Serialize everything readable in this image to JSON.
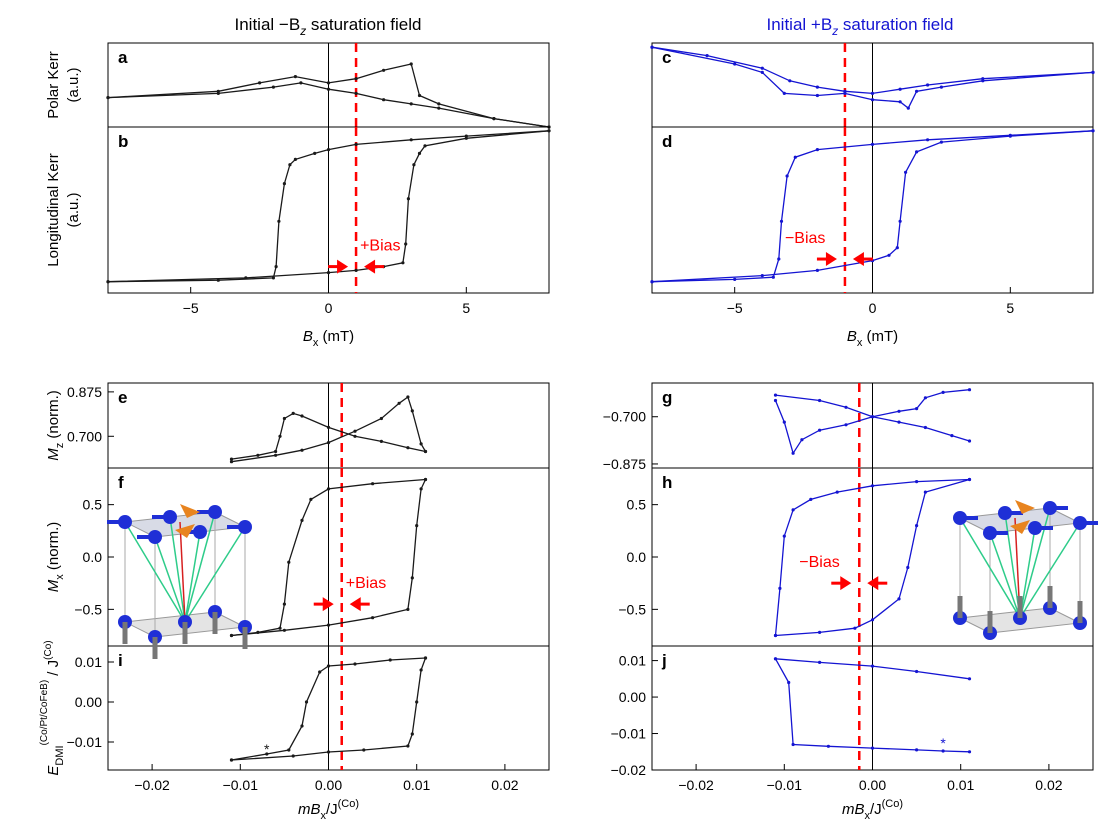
{
  "figure": {
    "col_left_title": "Initial −B",
    "col_left_sub": "z",
    "col_left_tail": " saturation field",
    "col_right_title": "Initial +B",
    "col_right_sub": "z",
    "col_right_tail": " saturation field",
    "left_color": "#1a1a1a",
    "right_color": "#1414d2",
    "bias_color": "#ff0000"
  },
  "chart_data": [
    {
      "id": "a",
      "type": "line",
      "ylabel": "Polar Kerr",
      "yunit": "(a.u.)",
      "xlim": [
        -8,
        8
      ],
      "ylim": [
        -1,
        1
      ],
      "yticks": [],
      "xticks": [],
      "bias_line_x": 1,
      "series": [
        {
          "x": [
            -8,
            -4,
            -2,
            -1,
            0,
            1,
            2,
            3,
            4,
            6,
            8
          ],
          "y": [
            -0.3,
            -0.2,
            -0.05,
            0.05,
            -0.1,
            -0.2,
            -0.35,
            -0.45,
            -0.55,
            -0.8,
            -1.0
          ]
        },
        {
          "x": [
            -8,
            -4,
            -2.5,
            -1.2,
            0,
            1,
            2,
            3,
            3.3,
            4,
            6,
            8
          ],
          "y": [
            -0.3,
            -0.15,
            0.05,
            0.2,
            0.05,
            0.15,
            0.35,
            0.5,
            -0.25,
            -0.45,
            -0.8,
            -1.0
          ]
        }
      ]
    },
    {
      "id": "b",
      "type": "line",
      "ylabel": "Longitudinal Kerr",
      "yunit": "(a.u.)",
      "xlabel": "B",
      "xlabel_sub": "x",
      "xlabel_unit": " (mT)",
      "xlim": [
        -8,
        8
      ],
      "ylim": [
        -1.15,
        1.05
      ],
      "xticks": [
        -5,
        0,
        5
      ],
      "yticks": [],
      "bias_line_x": 1,
      "bias_label": "+Bias",
      "bias_arrow_y": -0.8,
      "series": [
        {
          "x": [
            -8,
            -4,
            -2,
            -1.9,
            -1.8,
            -1.6,
            -1.4,
            -1.2,
            -0.5,
            0,
            1,
            3,
            5,
            8
          ],
          "y": [
            -1,
            -0.98,
            -0.95,
            -0.8,
            -0.2,
            0.3,
            0.55,
            0.62,
            0.7,
            0.75,
            0.82,
            0.88,
            0.93,
            1.0
          ]
        },
        {
          "x": [
            -8,
            -3,
            0,
            1,
            2,
            2.7,
            2.8,
            2.9,
            3.1,
            3.3,
            3.5,
            5,
            8
          ],
          "y": [
            -1,
            -0.95,
            -0.88,
            -0.85,
            -0.8,
            -0.75,
            -0.5,
            0.1,
            0.55,
            0.7,
            0.8,
            0.9,
            1.0
          ]
        }
      ]
    },
    {
      "id": "c",
      "type": "line",
      "xlim": [
        -8,
        8
      ],
      "ylim": [
        -1,
        1
      ],
      "yticks": [],
      "xticks": [],
      "bias_line_x": -1,
      "series": [
        {
          "x": [
            -8,
            -6,
            -4,
            -3,
            -2,
            -1,
            0,
            1,
            2,
            4,
            8
          ],
          "y": [
            0.9,
            0.7,
            0.4,
            0.1,
            -0.05,
            -0.15,
            -0.2,
            -0.1,
            0.0,
            0.15,
            0.3
          ]
        },
        {
          "x": [
            -8,
            -5,
            -4,
            -3.2,
            -2,
            -1,
            0,
            1,
            1.3,
            1.6,
            2.5,
            4,
            8
          ],
          "y": [
            0.9,
            0.5,
            0.3,
            -0.2,
            -0.25,
            -0.2,
            -0.35,
            -0.4,
            -0.55,
            -0.15,
            -0.05,
            0.1,
            0.3
          ]
        }
      ]
    },
    {
      "id": "d",
      "type": "line",
      "xlabel": "B",
      "xlabel_sub": "x",
      "xlabel_unit": " (mT)",
      "xlim": [
        -8,
        8
      ],
      "ylim": [
        -1.15,
        1.05
      ],
      "xticks": [
        -5,
        0,
        5
      ],
      "yticks": [],
      "bias_line_x": -1,
      "bias_label": "−Bias",
      "bias_arrow_y": -0.7,
      "series": [
        {
          "x": [
            -8,
            -5,
            -3.6,
            -3.4,
            -3.3,
            -3.1,
            -2.8,
            -2,
            0,
            2,
            5,
            8
          ],
          "y": [
            -1,
            -0.97,
            -0.94,
            -0.7,
            -0.2,
            0.4,
            0.65,
            0.75,
            0.82,
            0.88,
            0.94,
            1.0
          ]
        },
        {
          "x": [
            -8,
            -4,
            -2,
            0,
            0.6,
            0.9,
            1.0,
            1.2,
            1.6,
            2.5,
            5,
            8
          ],
          "y": [
            -1,
            -0.92,
            -0.85,
            -0.72,
            -0.65,
            -0.55,
            -0.2,
            0.45,
            0.72,
            0.85,
            0.93,
            1.0
          ]
        }
      ]
    },
    {
      "id": "e",
      "type": "line",
      "ylabel": "M",
      "ylabel_sub": "z",
      "yunit": " (norm.)",
      "xlim": [
        -0.025,
        0.025
      ],
      "ylim": [
        0.575,
        0.91
      ],
      "yticks": [
        0.7,
        0.875
      ],
      "ytick_labels": [
        "0.700",
        "0.875"
      ],
      "xticks": [],
      "bias_line_x": 0.0015,
      "series": [
        {
          "x": [
            -0.011,
            -0.008,
            -0.006,
            -0.0055,
            -0.005,
            -0.004,
            -0.003,
            0,
            0.003,
            0.006,
            0.009,
            0.011
          ],
          "y": [
            0.61,
            0.625,
            0.64,
            0.7,
            0.77,
            0.79,
            0.78,
            0.735,
            0.7,
            0.68,
            0.655,
            0.64
          ]
        },
        {
          "x": [
            -0.011,
            -0.006,
            -0.003,
            0,
            0.003,
            0.006,
            0.008,
            0.009,
            0.0095,
            0.0105,
            0.011
          ],
          "y": [
            0.6,
            0.625,
            0.645,
            0.675,
            0.72,
            0.77,
            0.83,
            0.855,
            0.8,
            0.67,
            0.64
          ]
        }
      ]
    },
    {
      "id": "f",
      "type": "line",
      "ylabel": "M",
      "ylabel_sub": "x",
      "yunit": " (norm.)",
      "xlim": [
        -0.025,
        0.025
      ],
      "ylim": [
        -0.85,
        0.85
      ],
      "yticks": [
        -0.5,
        0.0,
        0.5
      ],
      "ytick_labels": [
        "−0.5",
        "0.0",
        "0.5"
      ],
      "xticks": [],
      "bias_line_x": 0.0015,
      "bias_label": "+Bias",
      "bias_arrow_y": -0.45,
      "series": [
        {
          "x": [
            -0.011,
            -0.008,
            -0.0055,
            -0.005,
            -0.0045,
            -0.003,
            -0.002,
            0,
            0.005,
            0.011
          ],
          "y": [
            -0.75,
            -0.72,
            -0.68,
            -0.45,
            -0.05,
            0.35,
            0.55,
            0.65,
            0.7,
            0.74
          ]
        },
        {
          "x": [
            -0.011,
            -0.005,
            0,
            0.005,
            0.009,
            0.0095,
            0.01,
            0.0105,
            0.011
          ],
          "y": [
            -0.75,
            -0.7,
            -0.65,
            -0.58,
            -0.5,
            -0.2,
            0.3,
            0.65,
            0.74
          ]
        }
      ]
    },
    {
      "id": "g",
      "type": "line",
      "xlim": [
        -0.025,
        0.025
      ],
      "ylim": [
        -0.89,
        -0.575
      ],
      "yticks": [
        -0.875,
        -0.7
      ],
      "ytick_labels": [
        "−0.875",
        "−0.700"
      ],
      "xticks": [],
      "bias_line_x": -0.0015,
      "series": [
        {
          "x": [
            -0.011,
            -0.006,
            -0.003,
            0,
            0.003,
            0.006,
            0.009,
            0.011
          ],
          "y": [
            -0.62,
            -0.64,
            -0.665,
            -0.7,
            -0.72,
            -0.74,
            -0.77,
            -0.79
          ]
        },
        {
          "x": [
            -0.011,
            -0.01,
            -0.009,
            -0.008,
            -0.006,
            -0.003,
            0,
            0.003,
            0.005,
            0.006,
            0.008,
            0.011
          ],
          "y": [
            -0.64,
            -0.72,
            -0.835,
            -0.785,
            -0.75,
            -0.73,
            -0.7,
            -0.68,
            -0.67,
            -0.63,
            -0.61,
            -0.6
          ]
        }
      ]
    },
    {
      "id": "h",
      "type": "line",
      "xlim": [
        -0.025,
        0.025
      ],
      "ylim": [
        -0.85,
        0.85
      ],
      "yticks": [
        -0.5,
        0.0,
        0.5
      ],
      "ytick_labels": [
        "−0.5",
        "0.0",
        "0.5"
      ],
      "xticks": [],
      "bias_line_x": -0.0015,
      "bias_label": "−Bias",
      "bias_arrow_y": -0.25,
      "series": [
        {
          "x": [
            -0.011,
            -0.0105,
            -0.01,
            -0.009,
            -0.007,
            -0.004,
            0,
            0.005,
            0.011
          ],
          "y": [
            -0.75,
            -0.3,
            0.2,
            0.45,
            0.55,
            0.62,
            0.68,
            0.72,
            0.74
          ]
        },
        {
          "x": [
            -0.011,
            -0.006,
            -0.002,
            0,
            0.003,
            0.004,
            0.005,
            0.006,
            0.011
          ],
          "y": [
            -0.75,
            -0.72,
            -0.68,
            -0.6,
            -0.4,
            -0.1,
            0.3,
            0.62,
            0.74
          ]
        }
      ]
    },
    {
      "id": "i",
      "type": "line",
      "ylabel": "E",
      "ylabel_sub": "DMI",
      "ylabel_sup": "(Co/Pt/CoFeB)",
      "yunit": " / J",
      "yunit_sup": "(Co)",
      "xlabel": "mB",
      "xlabel_sub": "x",
      "xlabel_unit": "/J",
      "xlabel_sup": "(Co)",
      "xlim": [
        -0.025,
        0.025
      ],
      "ylim": [
        -0.017,
        0.014
      ],
      "yticks": [
        -0.01,
        0.0,
        0.01
      ],
      "ytick_labels": [
        "−0.01",
        "0.00",
        "0.01"
      ],
      "xticks": [
        -0.02,
        -0.01,
        0.0,
        0.01,
        0.02
      ],
      "xtick_labels": [
        "−0.02",
        "−0.01",
        "0.00",
        "0.01",
        "0.02"
      ],
      "bias_line_x": 0.0015,
      "star_x": -0.007,
      "star_y": -0.013,
      "series": [
        {
          "x": [
            -0.011,
            -0.007,
            -0.0045,
            -0.003,
            -0.0025,
            -0.001,
            0,
            0.003,
            0.007,
            0.011
          ],
          "y": [
            -0.0145,
            -0.013,
            -0.012,
            -0.006,
            0.0,
            0.0075,
            0.009,
            0.0095,
            0.0105,
            0.011
          ]
        },
        {
          "x": [
            -0.011,
            -0.004,
            0,
            0.004,
            0.009,
            0.0095,
            0.01,
            0.0105,
            0.011
          ],
          "y": [
            -0.0145,
            -0.0135,
            -0.0125,
            -0.012,
            -0.011,
            -0.008,
            0.0,
            0.008,
            0.011
          ]
        }
      ]
    },
    {
      "id": "j",
      "type": "line",
      "xlabel": "mB",
      "xlabel_sub": "x",
      "xlabel_unit": "/J",
      "xlabel_sup": "(Co)",
      "xlim": [
        -0.025,
        0.025
      ],
      "ylim": [
        -0.02,
        0.014
      ],
      "yticks": [
        -0.02,
        -0.01,
        0.0,
        0.01
      ],
      "ytick_labels": [
        "−0.02",
        "−0.01",
        "0.00",
        "0.01"
      ],
      "xticks": [
        -0.02,
        -0.01,
        0.0,
        0.01,
        0.02
      ],
      "xtick_labels": [
        "−0.02",
        "−0.01",
        "0.00",
        "0.01",
        "0.02"
      ],
      "bias_line_x": -0.0015,
      "star_x": 0.008,
      "star_y": -0.014,
      "series": [
        {
          "x": [
            -0.011,
            -0.006,
            0,
            0.005,
            0.011
          ],
          "y": [
            0.0105,
            0.0095,
            0.0085,
            0.007,
            0.005
          ]
        },
        {
          "x": [
            -0.011,
            -0.0095,
            -0.009,
            -0.005,
            0,
            0.005,
            0.008,
            0.011
          ],
          "y": [
            0.0105,
            0.004,
            -0.013,
            -0.0135,
            -0.014,
            -0.0145,
            -0.0148,
            -0.015
          ]
        }
      ]
    }
  ]
}
